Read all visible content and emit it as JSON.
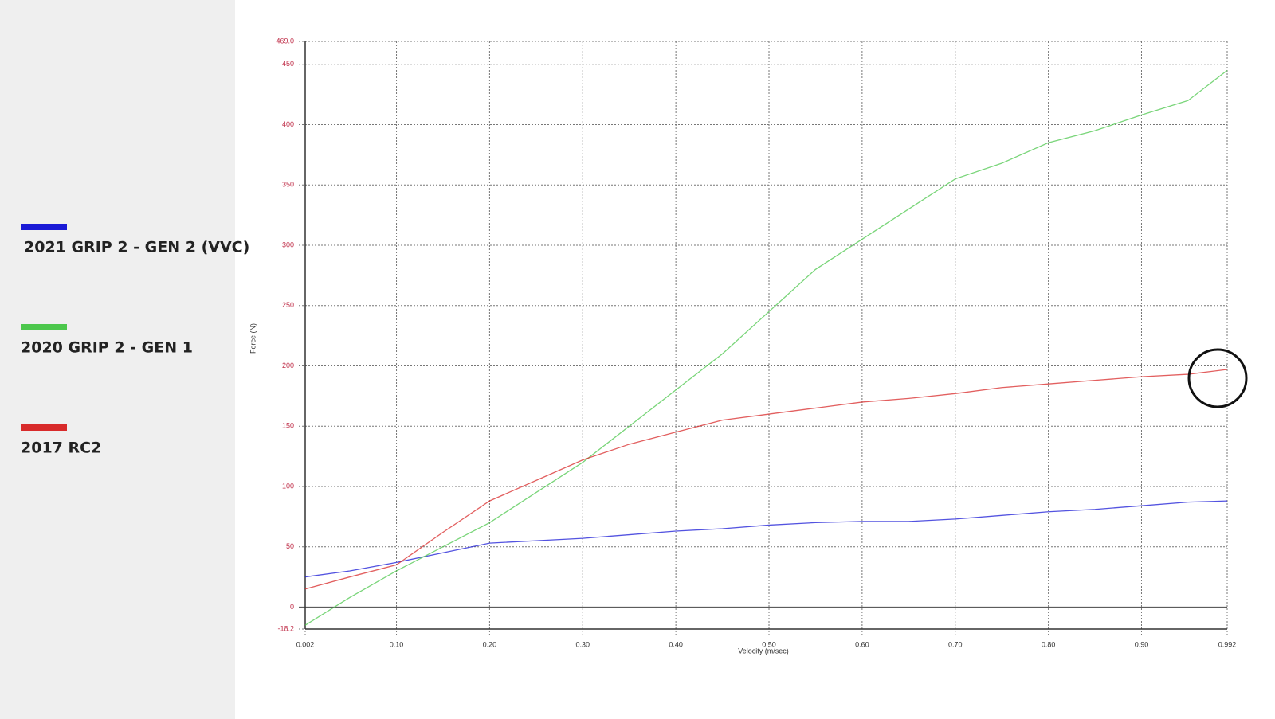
{
  "chart_data": {
    "type": "line",
    "x_label": "Velocity (m/sec)",
    "y_label": "Force (N)",
    "xlim": [
      0.002,
      0.992
    ],
    "xticks": [
      0.002,
      {
        "value": 0.1,
        "label": "0.10"
      },
      {
        "value": 0.2,
        "label": "0.20"
      },
      {
        "value": 0.3,
        "label": "0.30"
      },
      {
        "value": 0.4,
        "label": "0.40"
      },
      {
        "value": 0.5,
        "label": "0.50"
      },
      {
        "value": 0.6,
        "label": "0.60"
      },
      {
        "value": 0.7,
        "label": "0.70"
      },
      {
        "value": 0.8,
        "label": "0.80"
      },
      {
        "value": 0.9,
        "label": "0.90"
      },
      0.992
    ],
    "ylim": [
      -18.2,
      469
    ],
    "yticks": [
      -18.2,
      0,
      50,
      100,
      150,
      200,
      250,
      300,
      350,
      400,
      450,
      {
        "value": 469,
        "label": "469.0"
      }
    ],
    "grid": true,
    "x": [
      0.002,
      0.05,
      0.1,
      0.15,
      0.2,
      0.25,
      0.3,
      0.35,
      0.4,
      0.45,
      0.5,
      0.55,
      0.6,
      0.65,
      0.7,
      0.75,
      0.8,
      0.85,
      0.9,
      0.95,
      0.992
    ],
    "series": [
      {
        "name": "2021 GRIP 2 - GEN 2 (VVC)",
        "color": "#1a1ad6",
        "values": [
          25,
          30,
          37,
          45,
          53,
          55,
          57,
          60,
          63,
          65,
          68,
          70,
          71,
          71,
          73,
          76,
          79,
          81,
          84,
          87,
          88
        ]
      },
      {
        "name": "2020 GRIP 2 - GEN 1",
        "color": "#4cc74c",
        "values": [
          -15,
          8,
          30,
          50,
          70,
          95,
          120,
          150,
          180,
          210,
          245,
          280,
          305,
          330,
          355,
          368,
          385,
          395,
          408,
          420,
          445
        ]
      },
      {
        "name": "2017 RC2",
        "color": "#d82a2a",
        "values": [
          15,
          25,
          35,
          62,
          88,
          105,
          122,
          135,
          145,
          155,
          160,
          165,
          170,
          173,
          177,
          182,
          185,
          188,
          191,
          193,
          197
        ]
      }
    ]
  }
}
